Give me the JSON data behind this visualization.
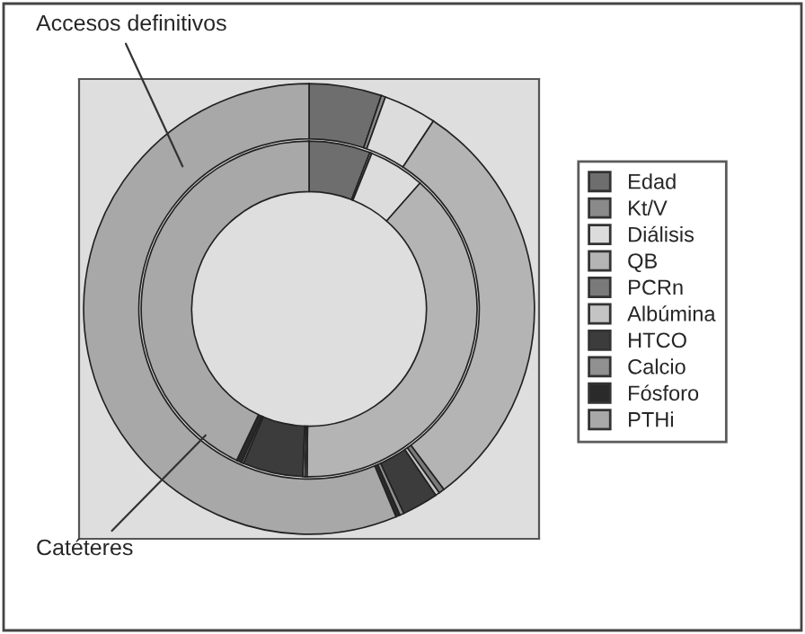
{
  "chart_data": {
    "type": "donut",
    "categories": [
      "Edad",
      "Kt/V",
      "Diálisis",
      "QB",
      "PCRn",
      "Albúmina",
      "HTCO",
      "Calcio",
      "Fósforo",
      "PTHi"
    ],
    "colors": [
      "#6e6e6e",
      "#8a8a8a",
      "#dcdcdc",
      "#b4b4b4",
      "#7a7a7a",
      "#c4c4c4",
      "#3c3c3c",
      "#909090",
      "#2a2a2a",
      "#a8a8a8"
    ],
    "series": [
      {
        "name": "Accesos definitivos",
        "values": [
          5.2,
          0.3,
          3.8,
          30.5,
          0.4,
          0.3,
          2.6,
          0.3,
          0.3,
          56.3
        ]
      },
      {
        "name": "Catéteres",
        "values": [
          5.9,
          0.2,
          5.4,
          38.7,
          0.2,
          0.2,
          5.8,
          0.2,
          0.5,
          42.9
        ]
      }
    ],
    "legend": "right"
  }
}
